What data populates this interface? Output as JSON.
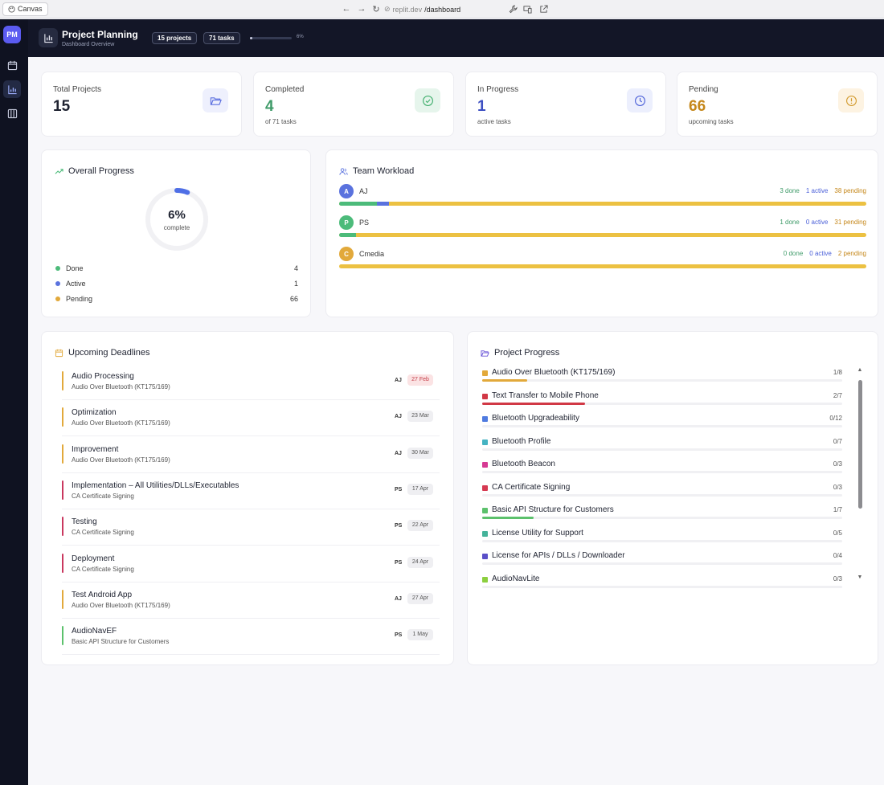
{
  "browser": {
    "canvas_label": "Canvas",
    "url_host": "replit.dev",
    "url_path": "/dashboard"
  },
  "app": {
    "logo": "PM",
    "title": "Project Planning",
    "subtitle": "Dashboard Overview",
    "projects_pill": "15 projects",
    "tasks_pill": "71 tasks",
    "progress_pct": "6%",
    "progress_value": 0.06
  },
  "stats": [
    {
      "label": "Total Projects",
      "value": "15",
      "sub": "",
      "color": "#1e2230",
      "icon": "folder-open-icon",
      "icon_bg": "#eef0fd",
      "icon_color": "#5b6fe0"
    },
    {
      "label": "Completed",
      "value": "4",
      "sub": "of 71 tasks",
      "color": "#3f9b69",
      "icon": "check-circle-icon",
      "icon_bg": "#e6f5ec",
      "icon_color": "#3fae6c"
    },
    {
      "label": "In Progress",
      "value": "1",
      "sub": "active tasks",
      "color": "#3d4fc2",
      "icon": "clock-icon",
      "icon_bg": "#eceffd",
      "icon_color": "#4a5fd8"
    },
    {
      "label": "Pending",
      "value": "66",
      "sub": "upcoming tasks",
      "color": "#c5871a",
      "icon": "alert-circle-icon",
      "icon_bg": "#fdf3e2",
      "icon_color": "#d29a2d"
    }
  ],
  "overall": {
    "title": "Overall Progress",
    "pct": "6%",
    "pct_label": "complete",
    "value": 0.06,
    "legend": [
      {
        "label": "Done",
        "count": "4",
        "color": "#4cbb7a"
      },
      {
        "label": "Active",
        "count": "1",
        "color": "#5a72de"
      },
      {
        "label": "Pending",
        "count": "66",
        "color": "#e2a93b"
      }
    ]
  },
  "workload": {
    "title": "Team Workload",
    "members": [
      {
        "initial": "A",
        "name": "AJ",
        "done": "3 done",
        "active": "1 active",
        "pending": "38 pending",
        "color": "#5a72de",
        "d": 3,
        "a": 1,
        "p": 38
      },
      {
        "initial": "P",
        "name": "PS",
        "done": "1 done",
        "active": "0 active",
        "pending": "31 pending",
        "color": "#4cbb7a",
        "d": 1,
        "a": 0,
        "p": 31
      },
      {
        "initial": "C",
        "name": "Cmedia",
        "done": "0 done",
        "active": "0 active",
        "pending": "2 pending",
        "color": "#e2a93b",
        "d": 0,
        "a": 0,
        "p": 2
      }
    ]
  },
  "deadlines": {
    "title": "Upcoming Deadlines",
    "items": [
      {
        "title": "Audio Processing",
        "project": "Audio Over Bluetooth (KT175/169)",
        "who": "AJ",
        "date": "27 Feb",
        "overdue": true,
        "color": "#e2a93b"
      },
      {
        "title": "Optimization",
        "project": "Audio Over Bluetooth (KT175/169)",
        "who": "AJ",
        "date": "23 Mar",
        "overdue": false,
        "color": "#e2a93b"
      },
      {
        "title": "Improvement",
        "project": "Audio Over Bluetooth (KT175/169)",
        "who": "AJ",
        "date": "30 Mar",
        "overdue": false,
        "color": "#e2a93b"
      },
      {
        "title": "Implementation – All Utilities/DLLs/Executables",
        "project": "CA Certificate Signing",
        "who": "PS",
        "date": "17 Apr",
        "overdue": false,
        "color": "#c9375e"
      },
      {
        "title": "Testing",
        "project": "CA Certificate Signing",
        "who": "PS",
        "date": "22 Apr",
        "overdue": false,
        "color": "#c9375e"
      },
      {
        "title": "Deployment",
        "project": "CA Certificate Signing",
        "who": "PS",
        "date": "24 Apr",
        "overdue": false,
        "color": "#c9375e"
      },
      {
        "title": "Test Android App",
        "project": "Audio Over Bluetooth (KT175/169)",
        "who": "AJ",
        "date": "27 Apr",
        "overdue": false,
        "color": "#e2a93b"
      },
      {
        "title": "AudioNavEF",
        "project": "Basic API Structure for Customers",
        "who": "PS",
        "date": "1 May",
        "overdue": false,
        "color": "#5cc16c"
      }
    ]
  },
  "projects": {
    "title": "Project Progress",
    "items": [
      {
        "name": "Audio Over Bluetooth (KT175/169)",
        "count": "1/8",
        "value": 0.125,
        "color": "#e2a93b"
      },
      {
        "name": "Text Transfer to Mobile Phone",
        "count": "2/7",
        "value": 0.2857,
        "color": "#d13845"
      },
      {
        "name": "Bluetooth Upgradeability",
        "count": "0/12",
        "value": 0,
        "color": "#4f7be0"
      },
      {
        "name": "Bluetooth Profile",
        "count": "0/7",
        "value": 0,
        "color": "#45b3c2"
      },
      {
        "name": "Bluetooth Beacon",
        "count": "0/3",
        "value": 0,
        "color": "#d63a93"
      },
      {
        "name": "CA Certificate Signing",
        "count": "0/3",
        "value": 0,
        "color": "#d63a52"
      },
      {
        "name": "Basic API Structure for Customers",
        "count": "1/7",
        "value": 0.1429,
        "color": "#5cc16c"
      },
      {
        "name": "License Utility for Support",
        "count": "0/5",
        "value": 0,
        "color": "#45b39a"
      },
      {
        "name": "License for APIs / DLLs / Downloader",
        "count": "0/4",
        "value": 0,
        "color": "#5a4fc8"
      },
      {
        "name": "AudioNavLite",
        "count": "0/3",
        "value": 0,
        "color": "#8ccf3f"
      }
    ]
  }
}
